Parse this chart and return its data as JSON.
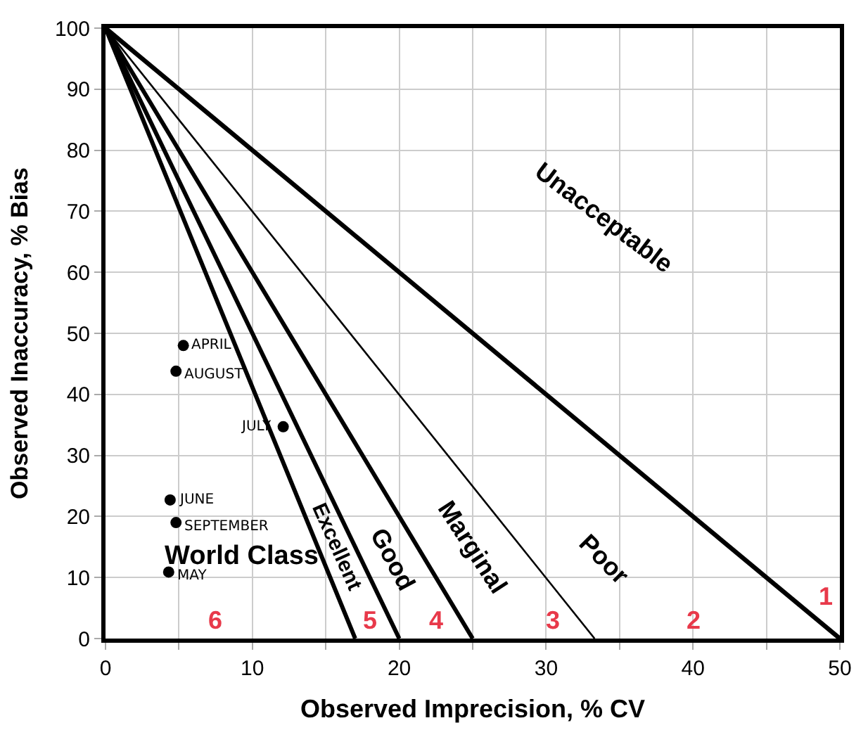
{
  "chart_data": {
    "type": "line",
    "xlabel": "Observed Imprecision, % CV",
    "ylabel": "Observed Inaccuracy, % Bias",
    "xlim": [
      0,
      50
    ],
    "ylim": [
      0,
      100
    ],
    "xticks": [
      0,
      {
        "value": 5,
        "label": null
      },
      10,
      {
        "value": 15,
        "label": null
      },
      20,
      {
        "value": 25,
        "label": null
      },
      30,
      {
        "value": 35,
        "label": null
      },
      40,
      {
        "value": 45,
        "label": null
      },
      50
    ],
    "yticks": [
      0,
      10,
      20,
      30,
      40,
      50,
      60,
      70,
      80,
      90,
      100
    ],
    "grid": true,
    "legend": false,
    "marker": "none",
    "line_style": "solid",
    "series": [
      {
        "color": "#000000",
        "x": [
          0,
          50
        ],
        "values": [
          100,
          0
        ]
      },
      {
        "color": "#000000",
        "x": [
          0,
          33.3
        ],
        "values": [
          100,
          0
        ]
      },
      {
        "color": "#000000",
        "x": [
          0,
          25
        ],
        "values": [
          100,
          0
        ]
      },
      {
        "color": "#000000",
        "x": [
          0,
          20
        ],
        "values": [
          100,
          0
        ]
      },
      {
        "color": "#000000",
        "x": [
          0,
          17
        ],
        "values": [
          100,
          0
        ]
      },
      {
        "type": "scatter",
        "marker": "circle",
        "color": "#000000",
        "x": [
          5.3,
          4.8,
          12.1,
          4.4,
          4.8,
          4.3
        ],
        "values": [
          48,
          43.8,
          34.7,
          22.7,
          19,
          10.9
        ]
      }
    ],
    "annotations": [
      "Unacceptable",
      "Poor",
      "Marginal",
      "Good",
      "Excellent",
      "World Class",
      "1",
      "2",
      "3",
      "4",
      "5",
      "6",
      {
        "text": "APRIL",
        "x": 5.3,
        "y": 48
      },
      {
        "text": "AUGUST",
        "x": 4.8,
        "y": 43.8
      },
      {
        "text": "JULY",
        "x": 12.1,
        "y": 34.7
      },
      {
        "text": "JUNE",
        "x": 4.4,
        "y": 22.7
      },
      {
        "text": "SEPTEMBER",
        "x": 4.8,
        "y": 19
      },
      {
        "text": "MAY",
        "x": 4.3,
        "y": 10.9
      }
    ]
  }
}
